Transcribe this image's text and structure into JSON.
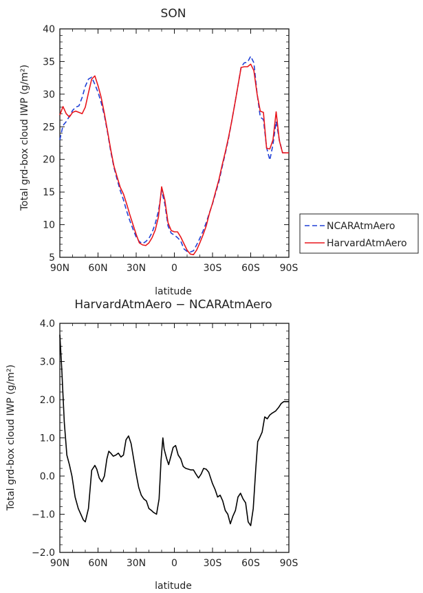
{
  "chart_data": [
    {
      "type": "line",
      "title": "SON",
      "xlabel": "latitude",
      "ylabel": "Total grd-box cloud IWP (g/m²)",
      "xlim": [
        90,
        -90
      ],
      "ylim": [
        5,
        40
      ],
      "xtick_values": [
        90,
        60,
        30,
        0,
        -30,
        -60,
        -90
      ],
      "xtick_labels": [
        "90N",
        "60N",
        "30N",
        "0",
        "30S",
        "60S",
        "90S"
      ],
      "ytick_values": [
        5,
        10,
        15,
        20,
        25,
        30,
        35,
        40
      ],
      "ytick_labels": [
        "5",
        "10",
        "15",
        "20",
        "25",
        "30",
        "35",
        "40"
      ],
      "grid": false,
      "legend_position": "outside-right",
      "x": [
        90,
        87.5,
        85,
        82.5,
        80,
        77.5,
        75,
        72.5,
        70,
        67.5,
        65,
        62.5,
        60,
        57.5,
        55,
        52.5,
        50,
        47.5,
        45,
        42.5,
        40,
        37.5,
        35,
        32.5,
        30,
        27.5,
        25,
        22.5,
        20,
        17.5,
        15,
        12.5,
        10,
        7.5,
        5,
        2.5,
        0,
        -2.5,
        -5,
        -7.5,
        -10,
        -12.5,
        -15,
        -17.5,
        -20,
        -22.5,
        -25,
        -27.5,
        -30,
        -32.5,
        -35,
        -37.5,
        -40,
        -42.5,
        -45,
        -47.5,
        -50,
        -52.5,
        -55,
        -57.5,
        -60,
        -62.5,
        -65,
        -67.5,
        -70,
        -72.5,
        -75,
        -77.5,
        -80,
        -82.5,
        -85,
        -87.5,
        -90
      ],
      "series": [
        {
          "name": "NCARAtmAero",
          "color": "#1f3fd6",
          "dash": "dashed",
          "values": [
            23,
            25.2,
            25.8,
            26.6,
            27.5,
            28,
            28.2,
            29.5,
            31.2,
            32.3,
            32.6,
            31.5,
            30.3,
            28.7,
            26.7,
            24.1,
            21.2,
            18.8,
            16.9,
            15.2,
            13.8,
            12.1,
            10.6,
            9.3,
            8.1,
            7.4,
            7.1,
            7.4,
            7.9,
            8.8,
            10.2,
            12.1,
            15.2,
            13.2,
            9.8,
            8.7,
            8.4,
            8,
            7.5,
            6.3,
            5.9,
            5.8,
            6,
            6.9,
            7.9,
            9,
            10.3,
            11.8,
            13.2,
            14.9,
            16.6,
            18.8,
            20.9,
            23.1,
            25.8,
            28.5,
            31.3,
            34.2,
            34.8,
            34.9,
            35.8,
            34.8,
            30.1,
            26.5,
            26.1,
            21.8,
            19.9,
            22.3,
            25.8,
            23,
            21,
            21,
            21
          ]
        },
        {
          "name": "HarvardAtmAero",
          "color": "#e8141a",
          "dash": "solid",
          "values": [
            26.8,
            28.1,
            27,
            26.5,
            27.2,
            27.4,
            27.2,
            27,
            28,
            30.2,
            32.3,
            32.8,
            31.3,
            29.5,
            27,
            24.3,
            21.5,
            19,
            17.3,
            15.7,
            14.7,
            13.2,
            11.5,
            10,
            8.5,
            7.2,
            6.9,
            6.8,
            7.2,
            8,
            9.2,
            11.2,
            15.8,
            13.8,
            10.3,
            9.1,
            8.9,
            8.9,
            8.1,
            7.1,
            6.1,
            5.5,
            5.4,
            6.1,
            7.2,
            8.4,
            9.8,
            11.7,
            13.3,
            15.1,
            16.9,
            19.1,
            21.1,
            23.3,
            25.8,
            28.5,
            31.3,
            34.1,
            34.2,
            34.2,
            34.6,
            33.6,
            30,
            27.4,
            27.2,
            21.7,
            21.6,
            23,
            27.3,
            22.9,
            21,
            21,
            21
          ]
        }
      ]
    },
    {
      "type": "line",
      "title": "HarvardAtmAero − NCARAtmAero",
      "xlabel": "latitude",
      "ylabel": "Total grd-box cloud IWP (g/m²)",
      "xlim": [
        90,
        -90
      ],
      "ylim": [
        -2,
        4
      ],
      "xtick_values": [
        90,
        60,
        30,
        0,
        -30,
        -60,
        -90
      ],
      "xtick_labels": [
        "90N",
        "60N",
        "30N",
        "0",
        "30S",
        "60S",
        "90S"
      ],
      "ytick_values": [
        -2,
        -1,
        0,
        1,
        2,
        3,
        4
      ],
      "ytick_labels": [
        "−2.0",
        "−1.0",
        "0.0",
        "1.0",
        "2.0",
        "3.0",
        "4.0"
      ],
      "grid": false,
      "x": [
        90,
        88.5,
        86.5,
        84.5,
        82.5,
        80.5,
        78,
        75.5,
        73.5,
        71.5,
        70,
        67.5,
        65,
        62.5,
        61,
        59,
        57,
        55,
        53,
        51.5,
        50,
        48,
        46,
        44,
        42,
        40,
        38,
        36,
        34,
        32,
        30,
        28,
        26,
        24,
        22,
        20,
        18,
        16.5,
        14,
        12,
        10.5,
        9,
        8,
        6,
        4.5,
        2.5,
        1,
        -1,
        -3,
        -5,
        -7,
        -9,
        -11,
        -13,
        -15,
        -17,
        -19,
        -21,
        -23,
        -25,
        -27,
        -28.5,
        -30,
        -32,
        -34,
        -36,
        -38,
        -40,
        -42,
        -44,
        -46,
        -48,
        -50,
        -52,
        -54,
        -56,
        -58,
        -60,
        -62,
        -64,
        -65.5,
        -67,
        -69,
        -71,
        -73,
        -75,
        -77,
        -79.5,
        -82,
        -84,
        -86,
        -88.5,
        -90
      ],
      "series": [
        {
          "name": "",
          "color": "#000000",
          "dash": "solid",
          "values": [
            3.7,
            2.8,
            1.4,
            0.55,
            0.3,
            0.0,
            -0.55,
            -0.85,
            -1.0,
            -1.15,
            -1.2,
            -0.85,
            0.15,
            0.28,
            0.18,
            -0.05,
            -0.15,
            0.0,
            0.45,
            0.65,
            0.6,
            0.52,
            0.55,
            0.6,
            0.5,
            0.55,
            0.95,
            1.05,
            0.85,
            0.45,
            0.05,
            -0.3,
            -0.5,
            -0.6,
            -0.65,
            -0.85,
            -0.9,
            -0.95,
            -1.0,
            -0.6,
            0.4,
            1.0,
            0.7,
            0.45,
            0.3,
            0.55,
            0.75,
            0.8,
            0.55,
            0.45,
            0.25,
            0.2,
            0.18,
            0.16,
            0.16,
            0.05,
            -0.05,
            0.05,
            0.2,
            0.18,
            0.1,
            -0.05,
            -0.2,
            -0.35,
            -0.55,
            -0.5,
            -0.65,
            -0.9,
            -1.0,
            -1.25,
            -1.05,
            -0.9,
            -0.55,
            -0.45,
            -0.6,
            -0.7,
            -1.2,
            -1.3,
            -0.85,
            0.2,
            0.9,
            1.0,
            1.15,
            1.55,
            1.5,
            1.6,
            1.65,
            1.7,
            1.8,
            1.9,
            1.95,
            1.95,
            1.95
          ]
        }
      ]
    }
  ]
}
